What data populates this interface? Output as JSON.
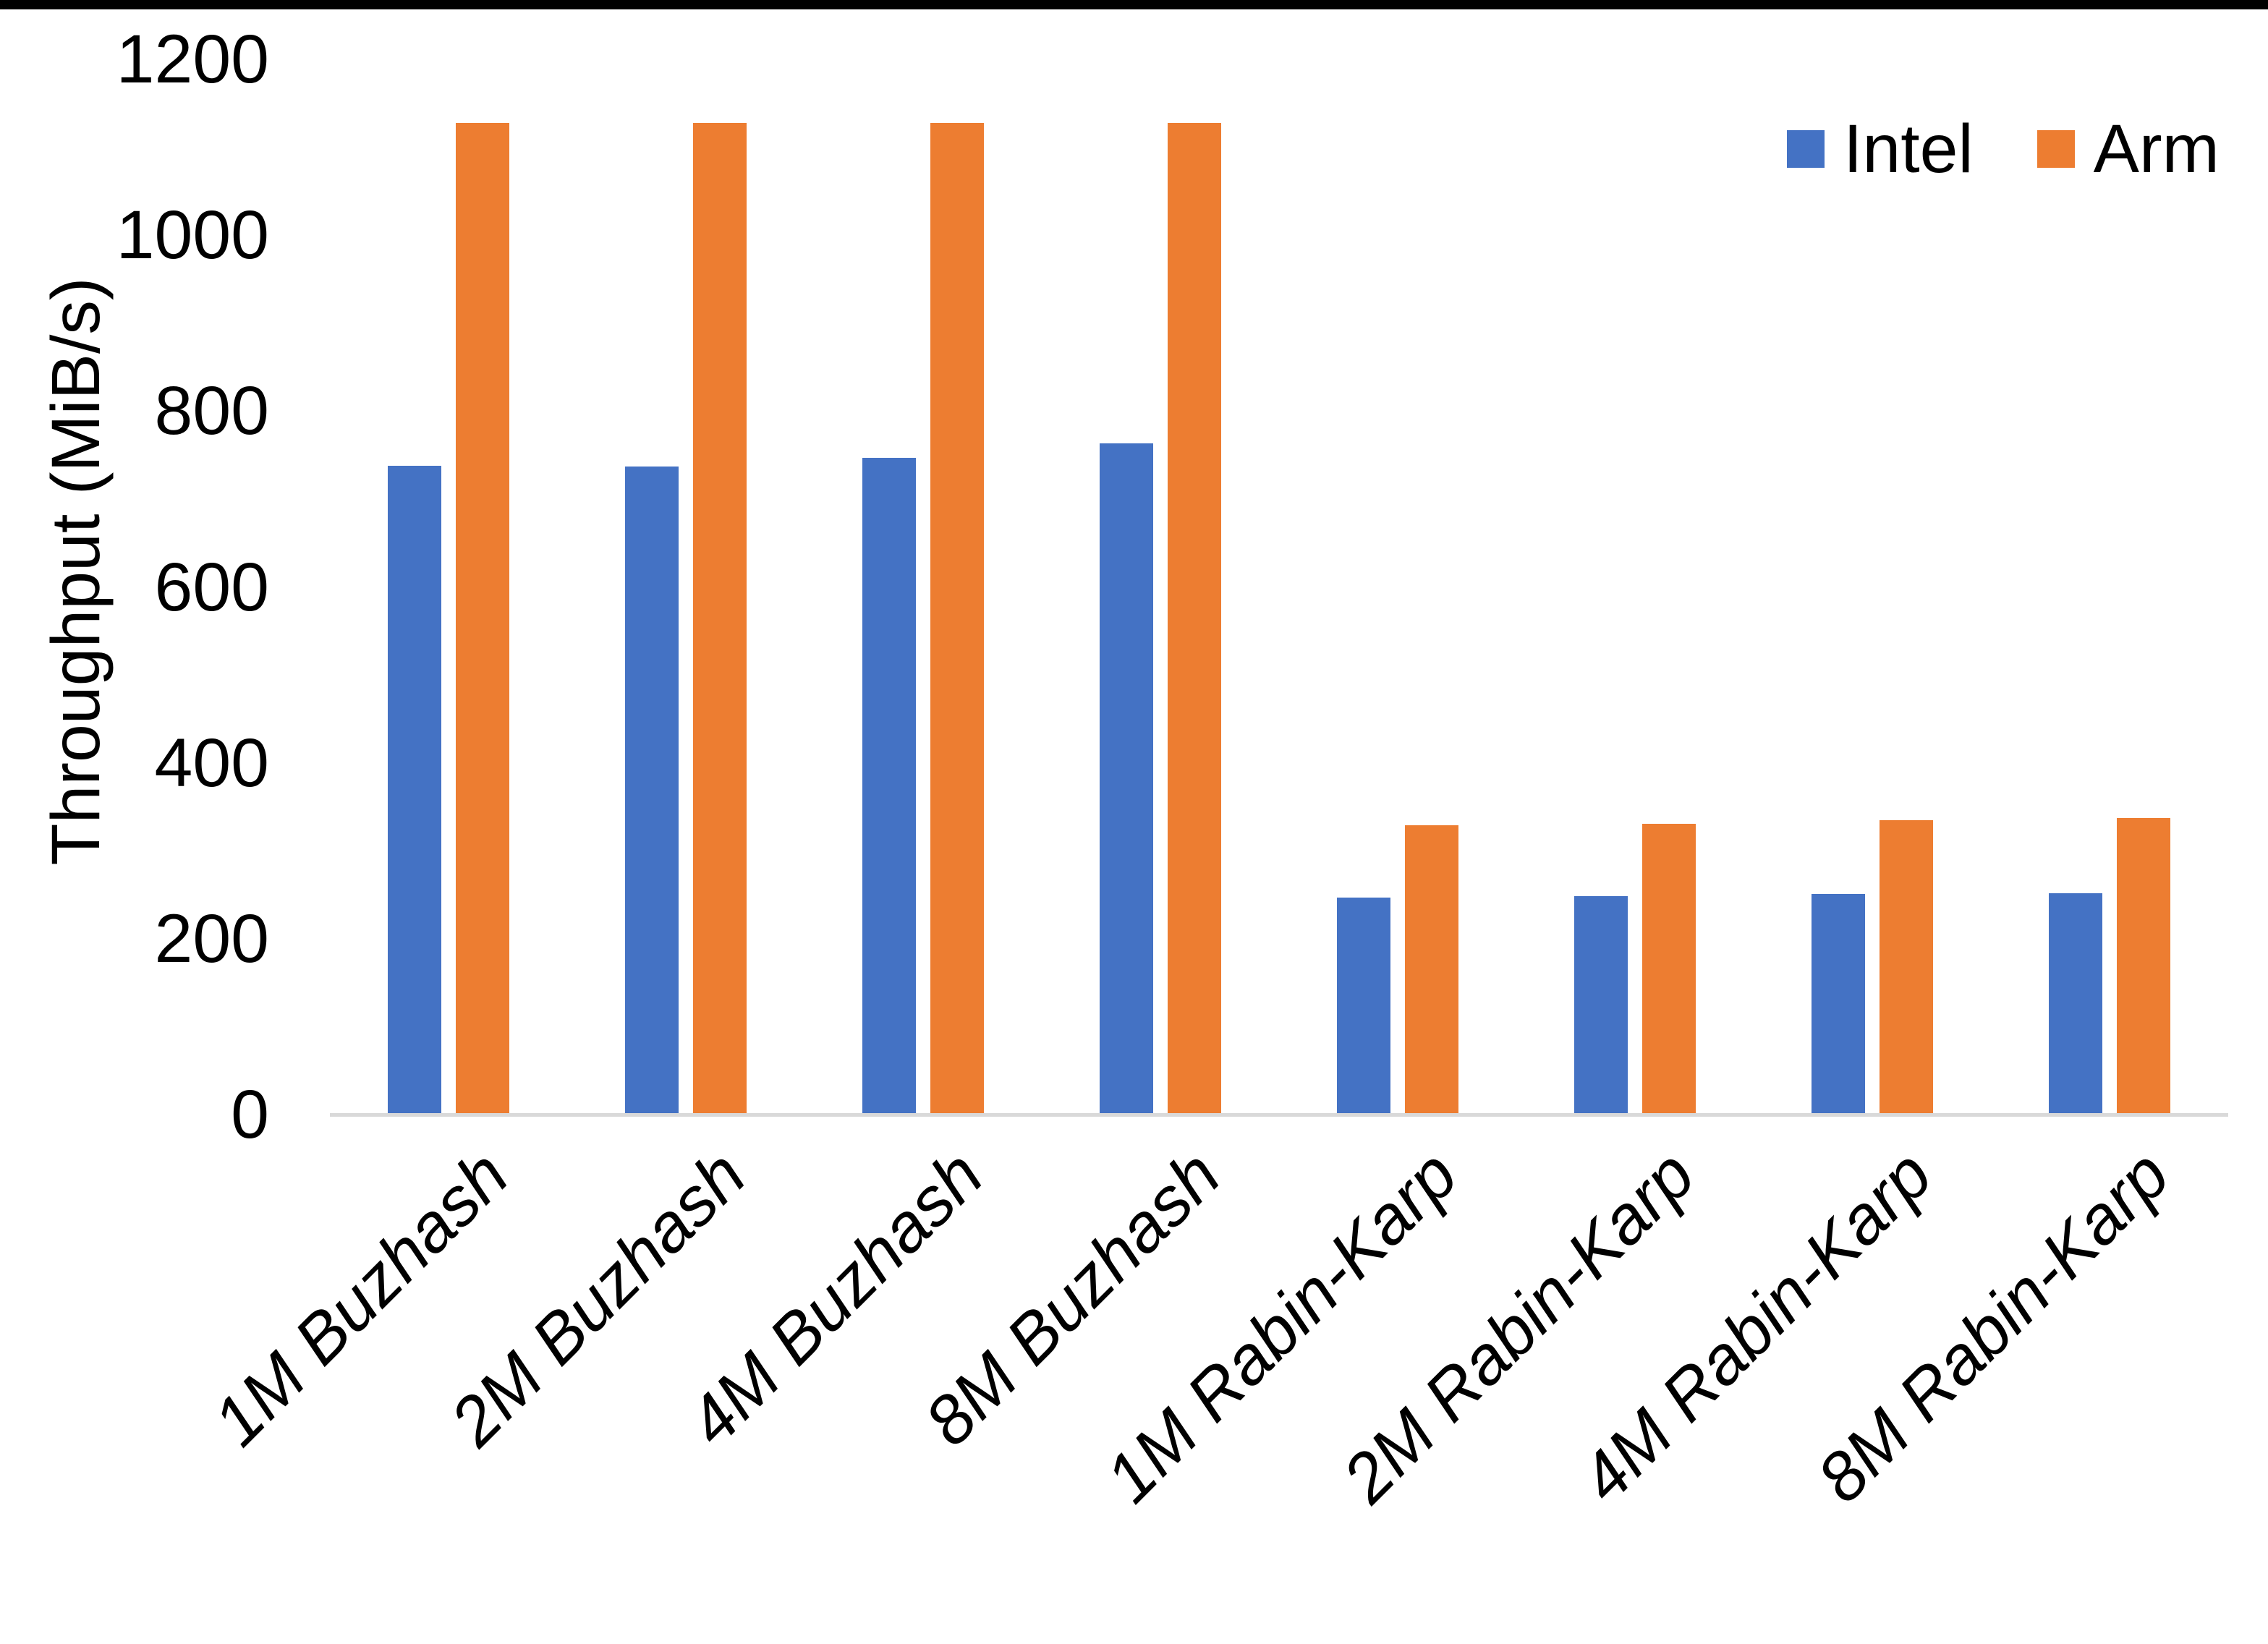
{
  "chart_data": {
    "type": "bar",
    "title": "",
    "xlabel": "",
    "ylabel": "Throughput (MiB/s)",
    "categories": [
      "1M Buzhash",
      "2M Buzhash",
      "4M Buzhash",
      "8M Buzhash",
      "1M Rabin-Karp",
      "2M Rabin-Karp",
      "4M Rabin-Karp",
      "8M Rabin-Karp"
    ],
    "series": [
      {
        "name": "Intel",
        "color": "#4472C4",
        "values": [
          738,
          737,
          747,
          763,
          247,
          248,
          251,
          252
        ]
      },
      {
        "name": "Arm",
        "color": "#ED7D31",
        "values": [
          1128,
          1128,
          1128,
          1128,
          329,
          331,
          335,
          337
        ]
      }
    ],
    "ylim": [
      0,
      1200
    ],
    "yticks": [
      0,
      200,
      400,
      600,
      800,
      1000,
      1200
    ],
    "grid": false,
    "legend_position": "top-right",
    "axis_line_color": "#D9D9D9",
    "text_color": "#000000",
    "background": "#FFFFFF"
  }
}
